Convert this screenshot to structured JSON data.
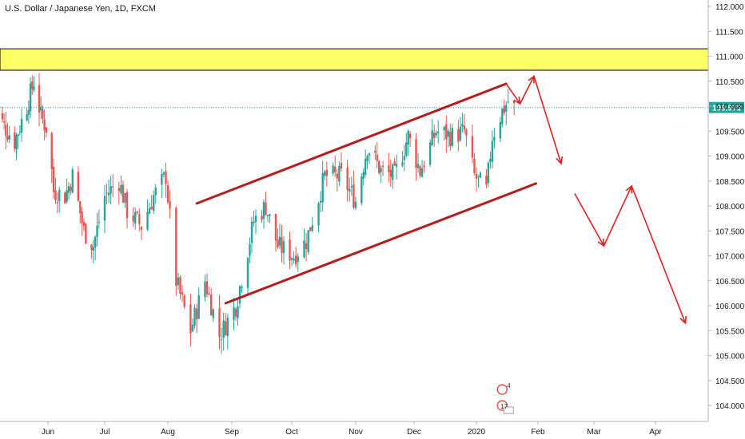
{
  "chart_data": {
    "type": "candlestick",
    "title": "U.S. Dollar / Japanese Yen, 1D, FXCM",
    "y_axis": {
      "min": 103.8,
      "max": 112.15,
      "ticks": [
        "112.000",
        "111.500",
        "111.000",
        "110.500",
        "110.000",
        "109.500",
        "109.000",
        "108.500",
        "108.000",
        "107.500",
        "107.000",
        "106.500",
        "106.000",
        "105.500",
        "105.000",
        "104.500",
        "104.000"
      ],
      "position": "right"
    },
    "x_axis": {
      "labels": [
        "Jun",
        "Jul",
        "Aug",
        "Sep",
        "Oct",
        "Nov",
        "Dec",
        "2020",
        "Feb",
        "Mar",
        "Apr"
      ]
    },
    "last_price": {
      "value": 109.973,
      "label": "109.973"
    },
    "resistance_zone": {
      "low": 110.72,
      "high": 111.15
    },
    "channel": {
      "upper": {
        "from": {
          "date": "2019-08-15",
          "price": 108.05
        },
        "to": {
          "date": "2020-01-16",
          "price": 110.45
        }
      },
      "lower": {
        "from": {
          "date": "2019-08-29",
          "price": 106.05
        },
        "to": {
          "date": "2020-01-31",
          "price": 108.45
        }
      }
    },
    "forecast_path": [
      {
        "date": "2020-01-16",
        "price": 110.45
      },
      {
        "date": "2020-01-23",
        "price": 110.05
      },
      {
        "date": "2020-01-30",
        "price": 110.6
      },
      {
        "date": "2020-02-13",
        "price": 108.85
      },
      {
        "date": "2020-02-20",
        "price": 108.25
      },
      {
        "date": "2020-03-06",
        "price": 107.2
      },
      {
        "date": "2020-03-20",
        "price": 108.4
      },
      {
        "date": "2020-04-16",
        "price": 105.65
      }
    ],
    "series": [],
    "event_badges": [
      {
        "label": "4"
      },
      {
        "label": "17"
      }
    ],
    "colors": {
      "up": "#26a69a",
      "down": "#ef5350",
      "channel": "#b71c1c",
      "forecast": "#e91e1e",
      "zone_fill": "#ffff66",
      "zone_border": "#000000",
      "last_price": "#26a69a"
    }
  }
}
